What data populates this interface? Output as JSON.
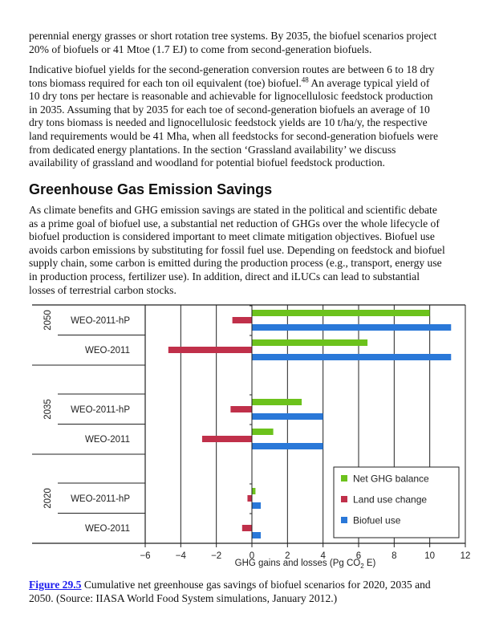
{
  "paragraphs": [
    {
      "lines": [
        "perennial energy grasses or short rotation tree systems. By 2035, the biofuel scenarios project",
        "20% of biofuels or 41 Mtoe (1.7 EJ) to come from second-generation biofuels."
      ]
    },
    {
      "lines": [
        "Indicative biofuel yields for the second-generation conversion routes are between 6 to 18 dry",
        "tons biomass required for each ton oil equivalent (toe) biofuel.",
        "10 dry tons per hectare is reasonable and achievable for lignocellulosic feedstock production",
        "in 2035. Assuming that by 2035 for each toe of second-generation biofuels an average of 10",
        "dry tons biomass is needed and lignocellulosic feedstock yields are 10 t/ha/y, the respective",
        "land requirements would be 41 Mha, when all feedstocks for second-generation biofuels were",
        "from dedicated energy plantations. In the section ‘Grassland availability’ we discuss",
        "availability of grassland and woodland for potential biofuel feedstock production."
      ],
      "footnote": "48",
      "after_footnote": " An average typical yield of"
    },
    {
      "lines": [
        "As climate benefits and GHG emission savings are stated in the political and scientific debate",
        "as a prime goal of biofuel use, a substantial net reduction of GHGs over the whole lifecycle of",
        "biofuel production is considered important to meet climate mitigation objectives. Biofuel use",
        "avoids carbon emissions by substituting for fossil fuel use. Depending on feedstock and biofuel",
        "supply chain, some carbon is emitted during the production process (e.g., transport, energy use",
        "in production process, fertilizer use). In addition, direct and iLUCs can lead to substantial",
        "losses of terrestrial carbon stocks."
      ]
    }
  ],
  "heading": "Greenhouse Gas Emission Savings",
  "chart_data": {
    "type": "bar",
    "orientation": "horizontal",
    "groups": [
      {
        "year": "2050",
        "scenarios": [
          {
            "label": "WEO-2011-hP",
            "net": 10.0,
            "land": -1.1,
            "biofuel": 11.2
          },
          {
            "label": "WEO-2011",
            "net": 6.5,
            "land": -4.7,
            "biofuel": 11.2
          }
        ]
      },
      {
        "year": "2035",
        "scenarios": [
          {
            "label": "WEO-2011-hP",
            "net": 2.8,
            "land": -1.2,
            "biofuel": 4.0
          },
          {
            "label": "WEO-2011",
            "net": 1.2,
            "land": -2.8,
            "biofuel": 4.0
          }
        ]
      },
      {
        "year": "2020",
        "scenarios": [
          {
            "label": "WEO-2011-hP",
            "net": 0.2,
            "land": -0.25,
            "biofuel": 0.5
          },
          {
            "label": "WEO-2011",
            "net": 0.0,
            "land": -0.55,
            "biofuel": 0.5
          }
        ]
      }
    ],
    "series": [
      {
        "key": "net",
        "name": "Net GHG balance",
        "color": "#6cc21c"
      },
      {
        "key": "land",
        "name": "Land use change",
        "color": "#c0304a"
      },
      {
        "key": "biofuel",
        "name": "Biofuel use",
        "color": "#2a78d8"
      }
    ],
    "xlabel_main": "GHG gains and losses (Pg CO",
    "xlabel_sub": "2",
    "xlabel_end": " E)",
    "xlim": [
      -6,
      12
    ],
    "xticks": [
      "−6",
      "−4",
      "−2",
      "0",
      "2",
      "4",
      "6",
      "8",
      "10",
      "12"
    ],
    "grid": "vertical",
    "legend_position": "bottom-right"
  },
  "caption": {
    "link": "Figure 29.5",
    "text": " Cumulative net greenhouse gas savings of biofuel scenarios for 2020, 2035 and",
    "line2": "2050. (Source: IIASA World Food System simulations, January 2012.)"
  }
}
